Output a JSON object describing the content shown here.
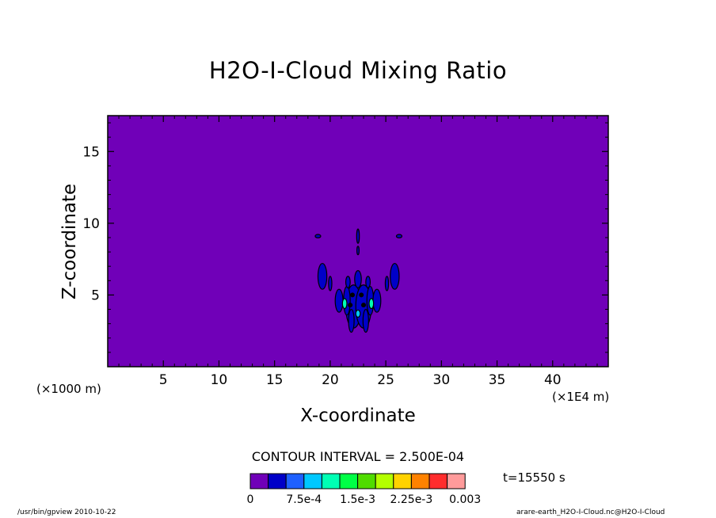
{
  "chart_data": {
    "type": "heatmap",
    "title": "H2O-I-Cloud Mixing Ratio",
    "xlabel": "X-coordinate",
    "ylabel": "Z-coordinate",
    "x_unit_left": "(×1000 m)",
    "x_unit_right": "(×1E4 m)",
    "xlim": [
      0,
      45
    ],
    "ylim": [
      0,
      17.5
    ],
    "xticks": [
      5,
      10,
      15,
      20,
      25,
      30,
      35,
      40
    ],
    "yticks": [
      5,
      10,
      15
    ],
    "background_value": 0,
    "blobs": [
      {
        "cx": 22.5,
        "cy": 4.8,
        "rx": 1.1,
        "ry": 0.9,
        "level": 2
      },
      {
        "cx": 22.1,
        "cy": 4.2,
        "rx": 0.7,
        "ry": 1.5,
        "level": 1
      },
      {
        "cx": 23.0,
        "cy": 4.2,
        "rx": 0.7,
        "ry": 1.5,
        "level": 1
      },
      {
        "cx": 21.5,
        "cy": 4.6,
        "rx": 0.3,
        "ry": 1.0,
        "level": 1
      },
      {
        "cx": 23.6,
        "cy": 4.6,
        "rx": 0.3,
        "ry": 1.0,
        "level": 1
      },
      {
        "cx": 20.8,
        "cy": 4.6,
        "rx": 0.35,
        "ry": 0.8,
        "level": 1
      },
      {
        "cx": 24.2,
        "cy": 4.6,
        "rx": 0.35,
        "ry": 0.8,
        "level": 1
      },
      {
        "cx": 21.9,
        "cy": 3.2,
        "rx": 0.25,
        "ry": 0.8,
        "level": 1
      },
      {
        "cx": 23.2,
        "cy": 3.2,
        "rx": 0.25,
        "ry": 0.8,
        "level": 1
      },
      {
        "cx": 22.5,
        "cy": 6.1,
        "rx": 0.3,
        "ry": 0.6,
        "level": 1
      },
      {
        "cx": 21.6,
        "cy": 5.9,
        "rx": 0.2,
        "ry": 0.4,
        "level": 1
      },
      {
        "cx": 23.4,
        "cy": 5.9,
        "rx": 0.2,
        "ry": 0.4,
        "level": 1
      },
      {
        "cx": 19.3,
        "cy": 6.3,
        "rx": 0.4,
        "ry": 0.9,
        "level": 1
      },
      {
        "cx": 25.8,
        "cy": 6.3,
        "rx": 0.4,
        "ry": 0.9,
        "level": 1
      },
      {
        "cx": 20.0,
        "cy": 5.8,
        "rx": 0.15,
        "ry": 0.5,
        "level": 1
      },
      {
        "cx": 25.1,
        "cy": 5.8,
        "rx": 0.15,
        "ry": 0.5,
        "level": 1
      },
      {
        "cx": 22.5,
        "cy": 9.1,
        "rx": 0.12,
        "ry": 0.5,
        "level": 1
      },
      {
        "cx": 22.5,
        "cy": 8.1,
        "rx": 0.1,
        "ry": 0.3,
        "level": 1
      },
      {
        "cx": 18.9,
        "cy": 9.1,
        "rx": 0.25,
        "ry": 0.12,
        "level": 1
      },
      {
        "cx": 26.2,
        "cy": 9.1,
        "rx": 0.25,
        "ry": 0.12,
        "level": 1
      },
      {
        "cx": 21.3,
        "cy": 4.4,
        "rx": 0.2,
        "ry": 0.35,
        "level": 4
      },
      {
        "cx": 23.7,
        "cy": 4.4,
        "rx": 0.2,
        "ry": 0.35,
        "level": 4
      },
      {
        "cx": 22.5,
        "cy": 3.7,
        "rx": 0.2,
        "ry": 0.25,
        "level": 3
      }
    ],
    "dark_spots": [
      {
        "cx": 22.0,
        "cy": 5.0
      },
      {
        "cx": 22.8,
        "cy": 5.0
      },
      {
        "cx": 21.8,
        "cy": 4.3
      },
      {
        "cx": 23.0,
        "cy": 4.3
      }
    ]
  },
  "contour_interval": "CONTOUR INTERVAL = 2.500E-04",
  "time_label": "t=15550 s",
  "colorbar": {
    "colors": [
      "#7000b8",
      "#0000c8",
      "#1e60ff",
      "#00c8ff",
      "#00ffb4",
      "#00ff46",
      "#50dc00",
      "#b4ff00",
      "#ffd200",
      "#ff8200",
      "#ff2d2d",
      "#ff9b9b"
    ],
    "labels": [
      {
        "text": "0",
        "index": 0
      },
      {
        "text": "7.5e-4",
        "index": 3
      },
      {
        "text": "1.5e-3",
        "index": 6
      },
      {
        "text": "2.25e-3",
        "index": 9
      },
      {
        "text": "0.003",
        "index": 12
      }
    ]
  },
  "footer_left": "/usr/bin/gpview  2010-10-22",
  "footer_right": "arare-earth_H2O-I-Cloud.nc@H2O-I-Cloud"
}
